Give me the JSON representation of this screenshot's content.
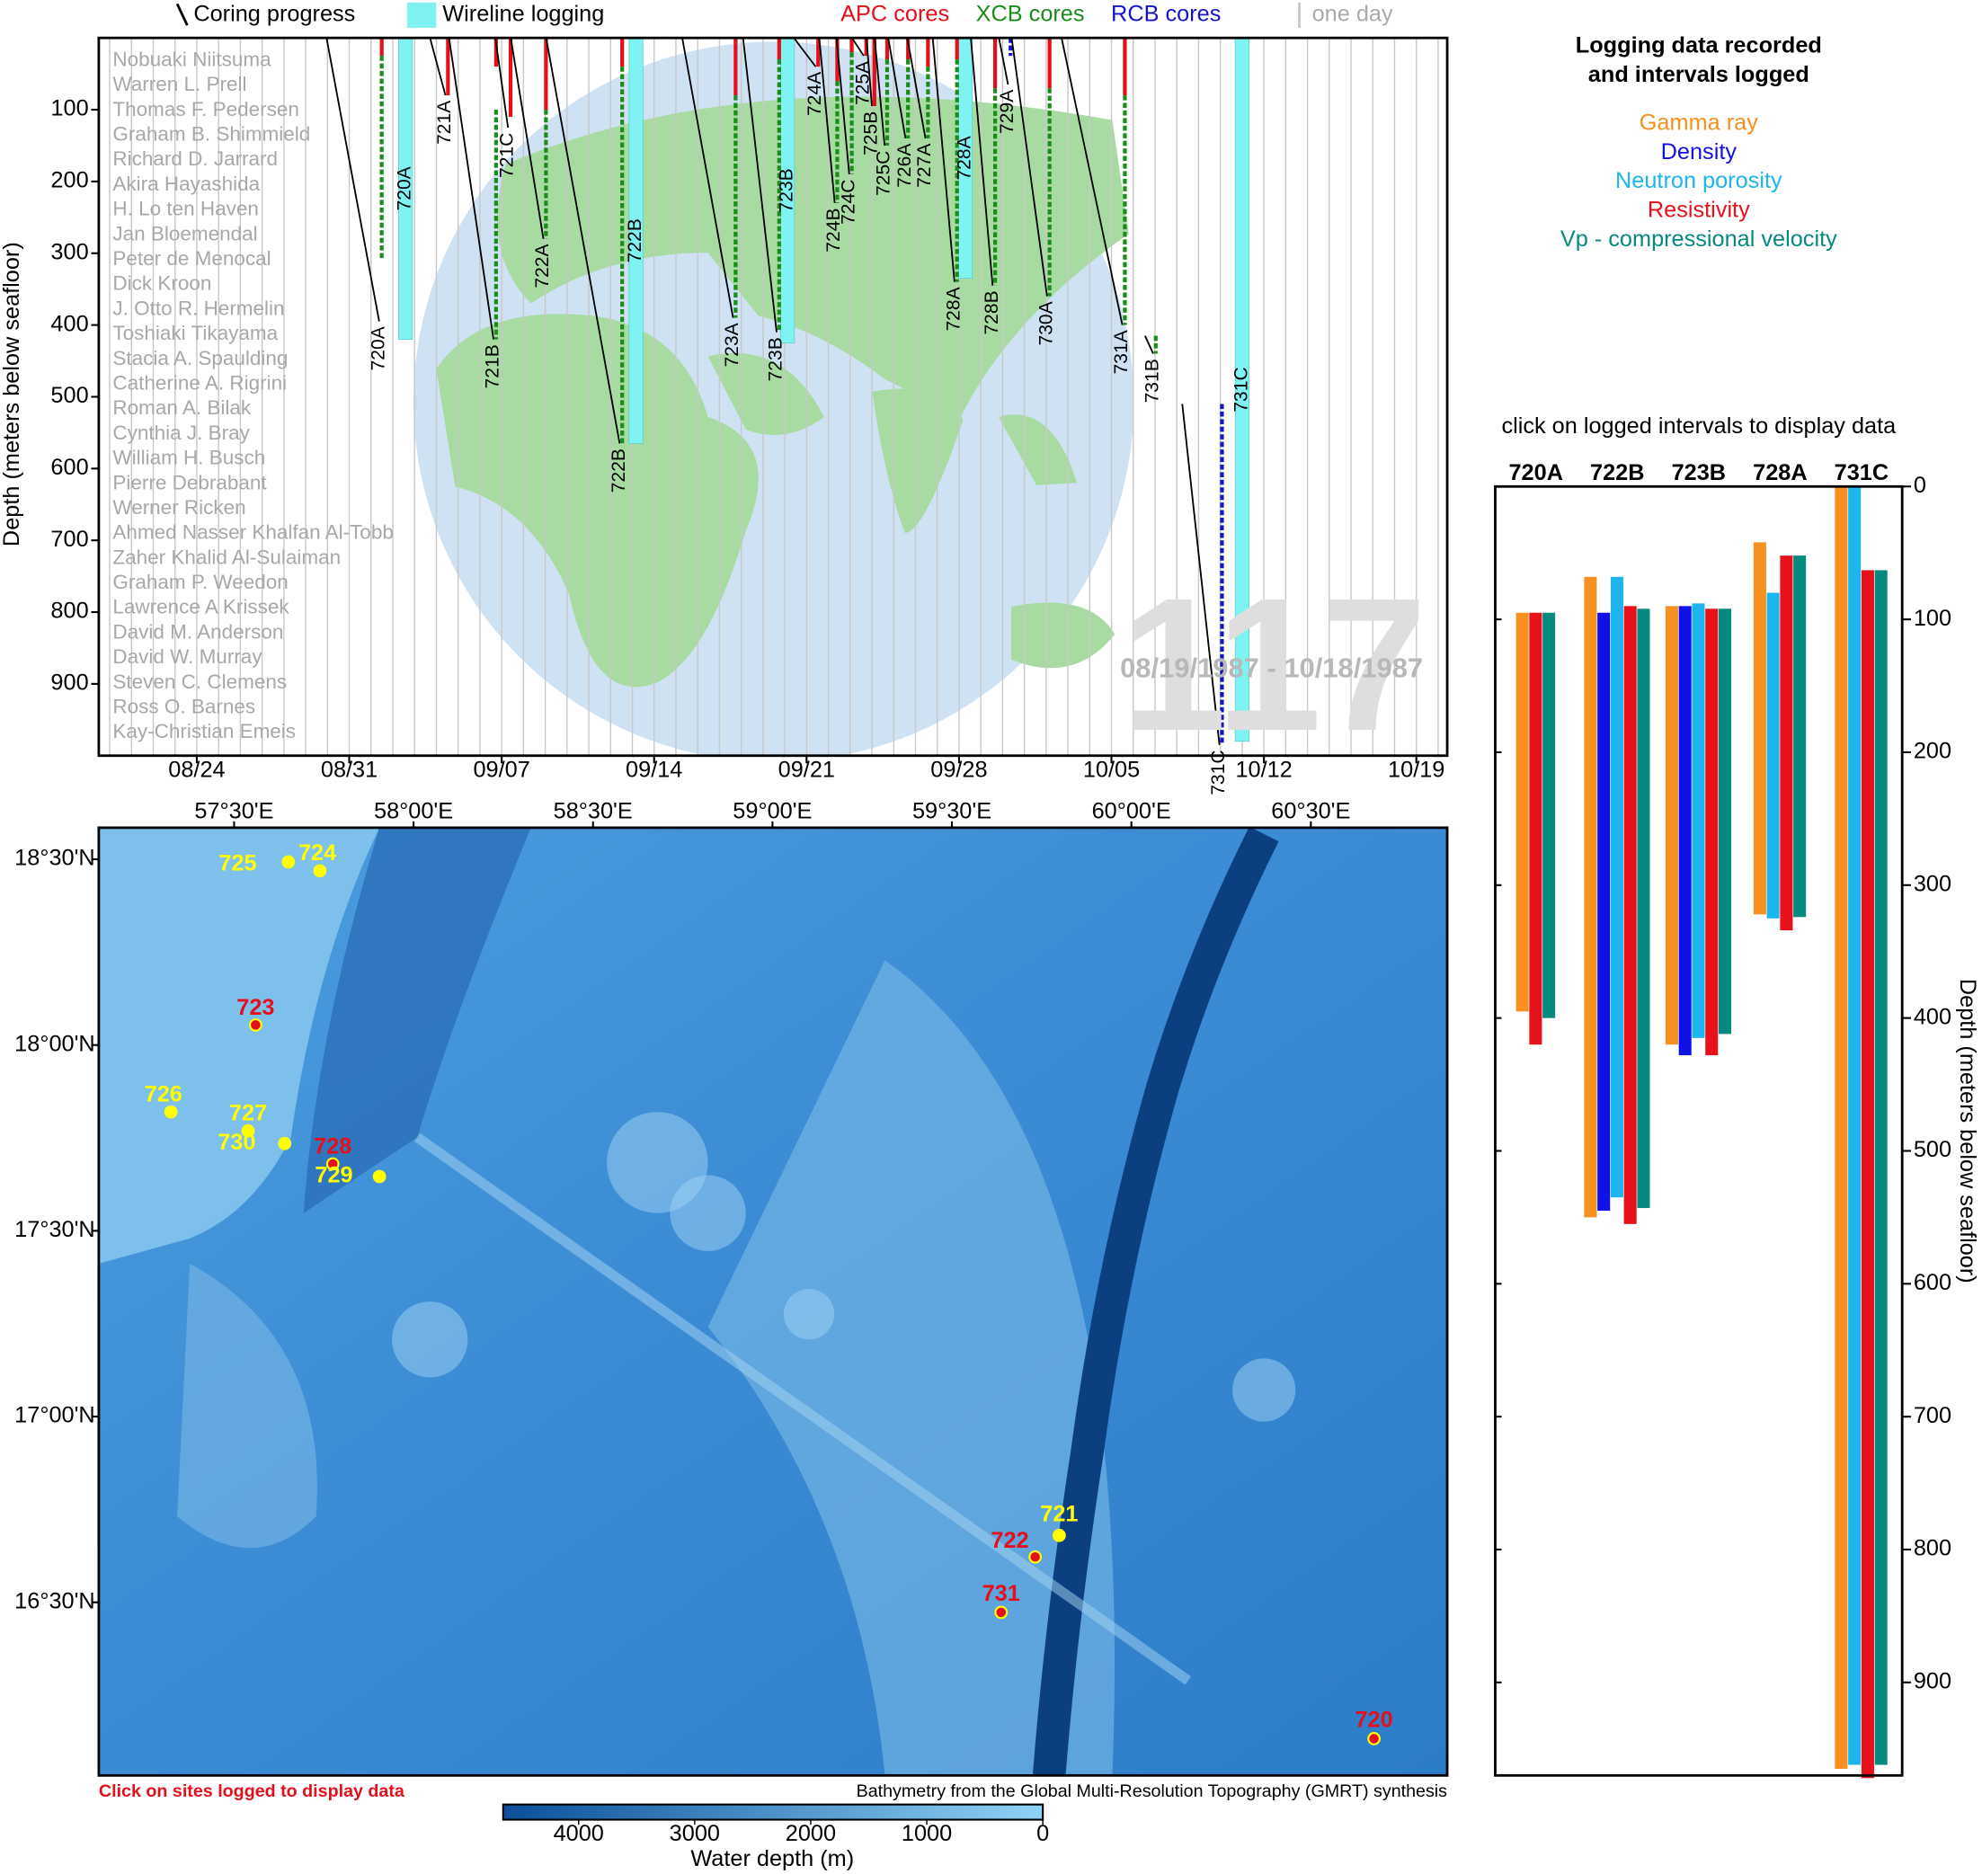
{
  "chart_data": [
    {
      "type": "timeline",
      "ylabel": "Depth (meters below seafloor)",
      "legend": {
        "coring": "Coring progress",
        "logging": "Wireline logging",
        "one_day": "one day"
      },
      "coring_color": "#000000",
      "logging_color": "#80f2f2",
      "day_color": "#c8c8c8",
      "core_types": [
        {
          "name": "APC cores",
          "color": "#e3101b"
        },
        {
          "name": "XCB cores",
          "color": "#1a8c1a"
        },
        {
          "name": "RCB cores",
          "color": "#1414c8"
        }
      ],
      "xlim": [
        "1987-08-19T12:00",
        "1987-10-20T10:00"
      ],
      "xticks": [
        {
          "value": "1987-08-24T00:00",
          "label": "08/24"
        },
        {
          "value": "1987-08-31T00:00",
          "label": "08/31"
        },
        {
          "value": "1987-09-07T00:00",
          "label": "09/07"
        },
        {
          "value": "1987-09-14T00:00",
          "label": "09/14"
        },
        {
          "value": "1987-09-21T00:00",
          "label": "09/21"
        },
        {
          "value": "1987-09-28T00:00",
          "label": "09/28"
        },
        {
          "value": "1987-10-05T00:00",
          "label": "10/05"
        },
        {
          "value": "1987-10-12T00:00",
          "label": "10/12"
        },
        {
          "value": "1987-10-19T00:00",
          "label": "10/19"
        }
      ],
      "ylim": [
        0,
        1000
      ],
      "y_inverted": true,
      "yticks": [
        100,
        200,
        300,
        400,
        500,
        600,
        700,
        800,
        900
      ],
      "names": [
        "Nobuaki Niitsuma",
        "Warren L. Prell",
        "Thomas F. Pedersen",
        "Graham B. Shimmield",
        "Richard D. Jarrard",
        "Akira Hayashida",
        "H. Lo ten Haven",
        "Jan Bloemendal",
        "Peter de Menocal",
        "Dick Kroon",
        "J. Otto R. Hermelin",
        "Toshiaki Tikayama",
        "Stacia A. Spaulding",
        "Catherine A. Rigrini",
        "Roman A. Bilak",
        "Cynthia J. Bray",
        "William H. Busch",
        "Pierre Debrabant",
        "Werner Ricken",
        "Ahmed Nasser Khalfan Al-Tobb",
        "Zaher Khalid Al-Sulaiman",
        "Graham P. Weedon",
        "Lawrence A Krissek",
        "David M. Anderson",
        "David W. Murray",
        "Steven C. Clemens",
        "Ross O. Barnes",
        "Kay-Christian Emeis"
      ],
      "big_label": "117",
      "date_range": "08/19/1987 - 10/18/1987",
      "holes": [
        {
          "name": "720A",
          "start": "1987-08-29T23:00",
          "end": "1987-09-01T09:00",
          "top": 0,
          "bottom": 395,
          "cores": [
            [
              0,
              25
            ],
            [
              25,
              310
            ],
            null
          ]
        },
        {
          "name": "721A",
          "start": "1987-09-03T17:00",
          "end": "1987-09-04T10:00",
          "top": 0,
          "bottom": 80,
          "cores": [
            [
              0,
              80
            ],
            null,
            null
          ]
        },
        {
          "name": "721B",
          "start": "1987-09-04T14:00",
          "end": "1987-09-06T15:00",
          "top": 0,
          "bottom": 420,
          "cores": [
            [
              0,
              40
            ],
            [
              100,
              420
            ],
            null
          ]
        },
        {
          "name": "721C",
          "start": "1987-09-06T17:00",
          "end": "1987-09-07T07:00",
          "top": 0,
          "bottom": 125,
          "cores": [
            [
              0,
              110
            ],
            null,
            null
          ]
        },
        {
          "name": "722A",
          "start": "1987-09-07T10:00",
          "end": "1987-09-08T22:00",
          "top": 0,
          "bottom": 280,
          "cores": [
            [
              0,
              100
            ],
            [
              100,
              280
            ],
            null
          ]
        },
        {
          "name": "722B",
          "start": "1987-09-09T01:00",
          "end": "1987-09-12T10:00",
          "top": 0,
          "bottom": 565,
          "cores": [
            [
              0,
              40
            ],
            [
              40,
              565
            ],
            null
          ]
        },
        {
          "name": "723A",
          "start": "1987-09-15T07:00",
          "end": "1987-09-17T15:00",
          "top": 0,
          "bottom": 390,
          "cores": [
            [
              0,
              80
            ],
            [
              80,
              390
            ],
            null
          ]
        },
        {
          "name": "723B",
          "start": "1987-09-18T02:00",
          "end": "1987-09-19T15:00",
          "top": 0,
          "bottom": 410,
          "cores": [
            [
              0,
              30
            ],
            [
              30,
              410
            ],
            null
          ]
        },
        {
          "name": "724A",
          "start": "1987-09-20T10:00",
          "end": "1987-09-21T10:00",
          "top": 0,
          "bottom": 40,
          "cores": [
            [
              0,
              40
            ],
            null,
            null
          ]
        },
        {
          "name": "724B",
          "start": "1987-09-21T14:00",
          "end": "1987-09-22T07:00",
          "top": 0,
          "bottom": 230,
          "cores": [
            [
              0,
              60
            ],
            [
              60,
              230
            ],
            null
          ]
        },
        {
          "name": "724C",
          "start": "1987-09-22T09:00",
          "end": "1987-09-22T23:00",
          "top": 0,
          "bottom": 190,
          "cores": [
            [
              0,
              20
            ],
            [
              20,
              190
            ],
            null
          ]
        },
        {
          "name": "725A",
          "start": "1987-09-23T02:00",
          "end": "1987-09-23T15:00",
          "top": 0,
          "bottom": 25,
          "cores": [
            [
              0,
              25
            ],
            null,
            null
          ]
        },
        {
          "name": "725B",
          "start": "1987-09-23T18:00",
          "end": "1987-09-24T00:00",
          "top": 0,
          "bottom": 95,
          "cores": [
            [
              0,
              95
            ],
            null,
            null
          ]
        },
        {
          "name": "725C",
          "start": "1987-09-24T03:00",
          "end": "1987-09-24T14:00",
          "top": 0,
          "bottom": 150,
          "cores": [
            [
              0,
              30
            ],
            [
              30,
              150
            ],
            null
          ]
        },
        {
          "name": "726A",
          "start": "1987-09-24T18:00",
          "end": "1987-09-25T13:00",
          "top": 0,
          "bottom": 140,
          "cores": [
            [
              0,
              30
            ],
            [
              30,
              140
            ],
            null
          ]
        },
        {
          "name": "727A",
          "start": "1987-09-25T15:00",
          "end": "1987-09-26T11:00",
          "top": 0,
          "bottom": 140,
          "cores": [
            [
              0,
              40
            ],
            [
              40,
              140
            ],
            null
          ]
        },
        {
          "name": "728A",
          "start": "1987-09-26T19:00",
          "end": "1987-09-27T19:00",
          "top": 0,
          "bottom": 340,
          "cores": [
            [
              0,
              30
            ],
            [
              30,
              340
            ],
            null
          ]
        },
        {
          "name": "728B",
          "start": "1987-09-28T13:00",
          "end": "1987-09-29T13:00",
          "top": 0,
          "bottom": 345,
          "cores": [
            [
              0,
              70
            ],
            [
              70,
              345
            ],
            null
          ]
        },
        {
          "name": "729A",
          "start": "1987-09-29T20:00",
          "end": "1987-09-30T06:00",
          "top": 0,
          "bottom": 65,
          "cores": [
            null,
            null,
            [
              0,
              25
            ]
          ]
        },
        {
          "name": "730A",
          "start": "1987-09-30T10:00",
          "end": "1987-10-02T01:00",
          "top": 0,
          "bottom": 360,
          "cores": [
            [
              0,
              70
            ],
            [
              70,
              360
            ],
            null
          ]
        },
        {
          "name": "731A",
          "start": "1987-10-02T17:00",
          "end": "1987-10-05T12:00",
          "top": 0,
          "bottom": 400,
          "cores": [
            [
              0,
              80
            ],
            [
              80,
              400
            ],
            null
          ]
        },
        {
          "name": "731B",
          "start": "1987-10-06T13:00",
          "end": "1987-10-06T22:00",
          "top": 415,
          "bottom": 440,
          "cores": [
            null,
            [
              415,
              440
            ],
            null
          ]
        },
        {
          "name": "731C",
          "start": "1987-10-08T06:00",
          "end": "1987-10-09T23:00",
          "top": 510,
          "bottom": 985,
          "cores": [
            null,
            null,
            [
              510,
              985
            ]
          ]
        }
      ],
      "logging": [
        {
          "name": "720A",
          "date": "1987-09-02T14:00",
          "bottom": 420
        },
        {
          "name": "722B",
          "date": "1987-09-13T04:00",
          "bottom": 565
        },
        {
          "name": "723B",
          "date": "1987-09-20T03:00",
          "bottom": 425
        },
        {
          "name": "728A",
          "date": "1987-09-28T07:00",
          "bottom": 335
        },
        {
          "name": "731C",
          "date": "1987-10-11T00:00",
          "bottom": 980
        }
      ]
    },
    {
      "type": "map",
      "xlim": [
        57.123,
        60.88
      ],
      "ylim": [
        16.034,
        18.585
      ],
      "xticks": [
        {
          "value": 57.5,
          "label": "57°30'E"
        },
        {
          "value": 58,
          "label": "58°00'E"
        },
        {
          "value": 58.5,
          "label": "58°30'E"
        },
        {
          "value": 59,
          "label": "59°00'E"
        },
        {
          "value": 59.5,
          "label": "59°30'E"
        },
        {
          "value": 60,
          "label": "60°00'E"
        },
        {
          "value": 60.5,
          "label": "60°30'E"
        }
      ],
      "yticks": [
        {
          "value": 18.5,
          "label": "18°30'N"
        },
        {
          "value": 18,
          "label": "18°00'N"
        },
        {
          "value": 17.5,
          "label": "17°30'N"
        },
        {
          "value": 17,
          "label": "17°00'N"
        },
        {
          "value": 16.5,
          "label": "16°30'N"
        }
      ],
      "logged_color": "#e3101b",
      "site_color": "#ffff00",
      "sites": [
        {
          "name": "725",
          "lon": 57.651,
          "lat": 18.493,
          "logged": false
        },
        {
          "name": "724",
          "lon": 57.739,
          "lat": 18.469,
          "logged": false
        },
        {
          "name": "723",
          "lon": 57.56,
          "lat": 18.054,
          "logged": true
        },
        {
          "name": "726",
          "lon": 57.324,
          "lat": 17.82,
          "logged": false
        },
        {
          "name": "727",
          "lon": 57.539,
          "lat": 17.769,
          "logged": false
        },
        {
          "name": "730",
          "lon": 57.641,
          "lat": 17.735,
          "logged": false
        },
        {
          "name": "728",
          "lon": 57.775,
          "lat": 17.68,
          "logged": true
        },
        {
          "name": "729",
          "lon": 57.905,
          "lat": 17.646,
          "logged": false
        },
        {
          "name": "721",
          "lon": 59.799,
          "lat": 16.68,
          "logged": false
        },
        {
          "name": "722",
          "lon": 59.732,
          "lat": 16.622,
          "logged": true
        },
        {
          "name": "731",
          "lon": 59.637,
          "lat": 16.473,
          "logged": true
        },
        {
          "name": "720",
          "lon": 60.676,
          "lat": 16.133,
          "logged": true
        }
      ],
      "note": "Click on sites logged to display data",
      "credit": "Bathymetry from the Global Multi-Resolution Topography (GMRT) synthesis",
      "colorbar": {
        "label": "Water depth (m)",
        "clim": [
          4650,
          0
        ],
        "ticks": [
          4000,
          3000,
          2000,
          1000,
          0
        ],
        "colors": [
          "#0b4f9a",
          "#8fd3f7"
        ]
      }
    },
    {
      "type": "range_bar",
      "title": [
        "Logging data recorded",
        "and intervals logged"
      ],
      "note": "click on logged intervals to display data",
      "ylabel": "Depth (meters below seafloor)",
      "categories": [
        "720A",
        "722B",
        "723B",
        "728A",
        "731C"
      ],
      "ylim": [
        0,
        970
      ],
      "y_inverted": true,
      "yticks": [
        0,
        100,
        200,
        300,
        400,
        500,
        600,
        700,
        800,
        900
      ],
      "series": [
        {
          "name": "Gamma ray",
          "color": "#f7901e",
          "values": [
            [
              95,
              395
            ],
            [
              68,
              550
            ],
            [
              90,
              420
            ],
            [
              42,
              322
            ],
            [
              0,
              965
            ]
          ]
        },
        {
          "name": "Density",
          "color": "#1010e8",
          "values": [
            null,
            [
              95,
              545
            ],
            [
              90,
              428
            ],
            null,
            null
          ]
        },
        {
          "name": "Neutron porosity",
          "color": "#1cb5ee",
          "values": [
            null,
            [
              68,
              535
            ],
            [
              88,
              415
            ],
            [
              80,
              325
            ],
            [
              0,
              962
            ]
          ]
        },
        {
          "name": "Resistivity",
          "color": "#e8101b",
          "values": [
            [
              95,
              420
            ],
            [
              90,
              555
            ],
            [
              92,
              428
            ],
            [
              52,
              334
            ],
            [
              63,
              972
            ]
          ]
        },
        {
          "name": "Vp - compressional velocity",
          "color": "#068a80",
          "values": [
            [
              95,
              400
            ],
            [
              92,
              543
            ],
            [
              92,
              412
            ],
            [
              52,
              324
            ],
            [
              63,
              962
            ]
          ]
        }
      ]
    }
  ]
}
